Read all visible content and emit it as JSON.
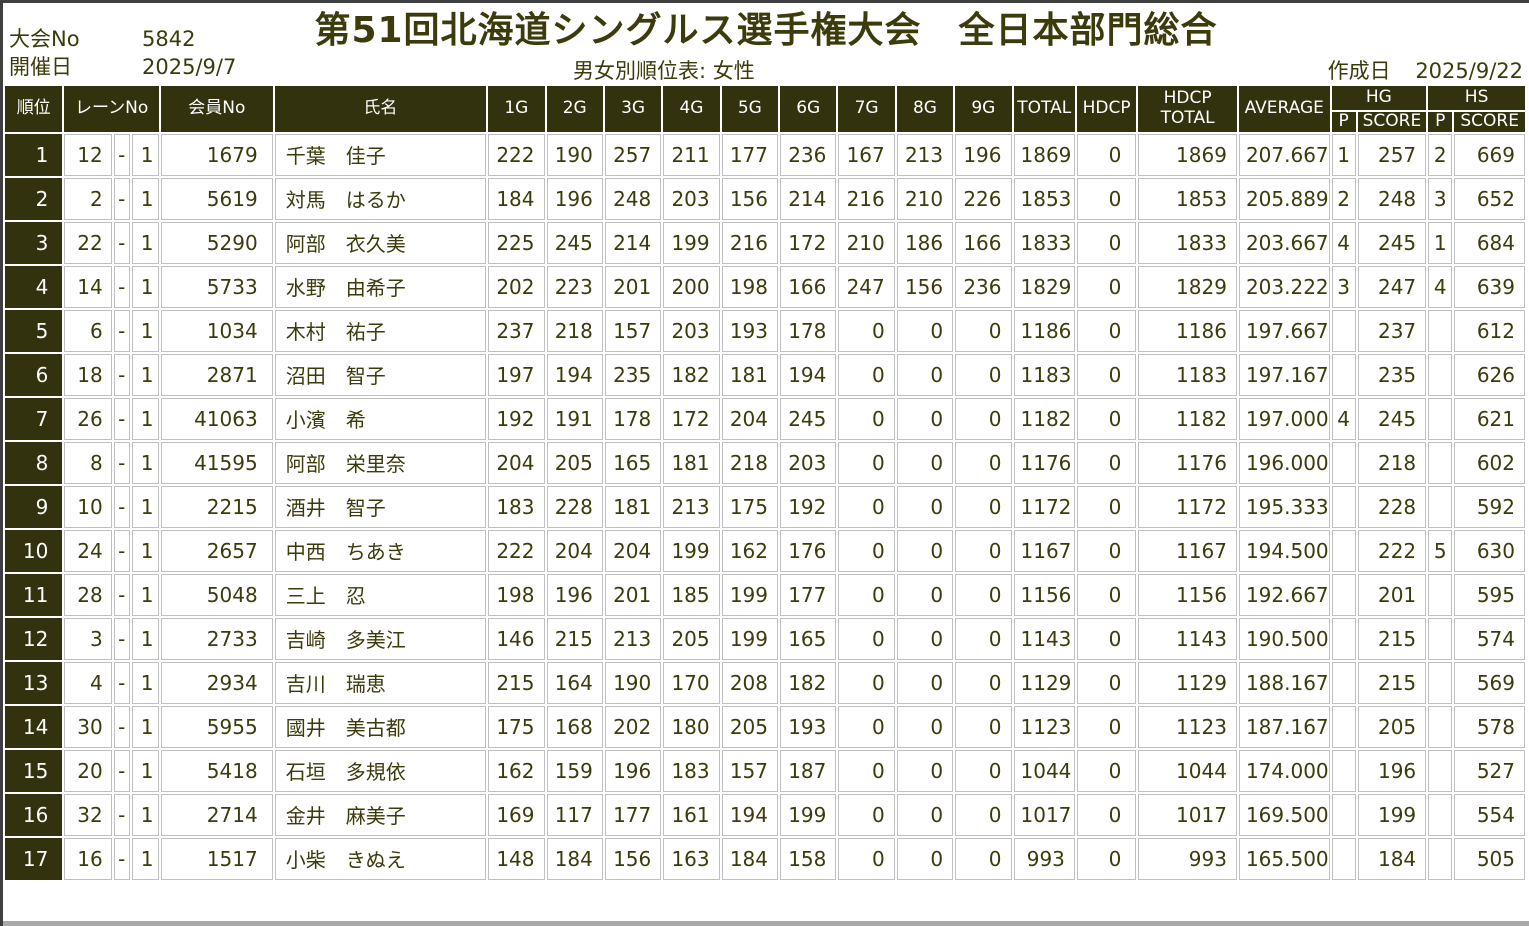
{
  "meta": {
    "tournament_no_label": "大会No",
    "tournament_no": "5842",
    "held_date_label": "開催日",
    "held_date": "2025/9/7",
    "title": "第51回北海道シングルス選手権大会　全日本部門総合",
    "subtitle": "男女別順位表: 女性",
    "created_label": "作成日",
    "created_date": "2025/9/22"
  },
  "colors": {
    "header_bg": "#32320e",
    "body_text": "#3b3b0c",
    "grid_line": "#c0c0c0",
    "frame": "#3f3f3f"
  },
  "table": {
    "lane_separator": "-",
    "headers": {
      "rank": "順位",
      "lane": "レーンNo",
      "member": "会員No",
      "name": "氏名",
      "games": [
        "1G",
        "2G",
        "3G",
        "4G",
        "5G",
        "6G",
        "7G",
        "8G",
        "9G"
      ],
      "total": "TOTAL",
      "hdcp": "HDCP",
      "hdcp_total_line1": "HDCP",
      "hdcp_total_line2": "TOTAL",
      "average": "AVERAGE",
      "hg": "HG",
      "hs": "HS",
      "p": "P",
      "score": "SCORE"
    },
    "rows": [
      {
        "rank": 1,
        "lane": 12,
        "lane2": 1,
        "member": 1679,
        "name": "千葉　佳子",
        "games": [
          222,
          190,
          257,
          211,
          177,
          236,
          167,
          213,
          196
        ],
        "total": 1869,
        "hdcp": 0,
        "hdcp_total": 1869,
        "average": "207.667",
        "hg_p": "1",
        "hg_score": 257,
        "hs_p": "2",
        "hs_score": 669
      },
      {
        "rank": 2,
        "lane": 2,
        "lane2": 1,
        "member": 5619,
        "name": "対馬　はるか",
        "games": [
          184,
          196,
          248,
          203,
          156,
          214,
          216,
          210,
          226
        ],
        "total": 1853,
        "hdcp": 0,
        "hdcp_total": 1853,
        "average": "205.889",
        "hg_p": "2",
        "hg_score": 248,
        "hs_p": "3",
        "hs_score": 652
      },
      {
        "rank": 3,
        "lane": 22,
        "lane2": 1,
        "member": 5290,
        "name": "阿部　衣久美",
        "games": [
          225,
          245,
          214,
          199,
          216,
          172,
          210,
          186,
          166
        ],
        "total": 1833,
        "hdcp": 0,
        "hdcp_total": 1833,
        "average": "203.667",
        "hg_p": "4",
        "hg_score": 245,
        "hs_p": "1",
        "hs_score": 684
      },
      {
        "rank": 4,
        "lane": 14,
        "lane2": 1,
        "member": 5733,
        "name": "水野　由希子",
        "games": [
          202,
          223,
          201,
          200,
          198,
          166,
          247,
          156,
          236
        ],
        "total": 1829,
        "hdcp": 0,
        "hdcp_total": 1829,
        "average": "203.222",
        "hg_p": "3",
        "hg_score": 247,
        "hs_p": "4",
        "hs_score": 639
      },
      {
        "rank": 5,
        "lane": 6,
        "lane2": 1,
        "member": 1034,
        "name": "木村　祐子",
        "games": [
          237,
          218,
          157,
          203,
          193,
          178,
          0,
          0,
          0
        ],
        "total": 1186,
        "hdcp": 0,
        "hdcp_total": 1186,
        "average": "197.667",
        "hg_p": "",
        "hg_score": 237,
        "hs_p": "",
        "hs_score": 612
      },
      {
        "rank": 6,
        "lane": 18,
        "lane2": 1,
        "member": 2871,
        "name": "沼田　智子",
        "games": [
          197,
          194,
          235,
          182,
          181,
          194,
          0,
          0,
          0
        ],
        "total": 1183,
        "hdcp": 0,
        "hdcp_total": 1183,
        "average": "197.167",
        "hg_p": "",
        "hg_score": 235,
        "hs_p": "",
        "hs_score": 626
      },
      {
        "rank": 7,
        "lane": 26,
        "lane2": 1,
        "member": 41063,
        "name": "小濱　希",
        "games": [
          192,
          191,
          178,
          172,
          204,
          245,
          0,
          0,
          0
        ],
        "total": 1182,
        "hdcp": 0,
        "hdcp_total": 1182,
        "average": "197.000",
        "hg_p": "4",
        "hg_score": 245,
        "hs_p": "",
        "hs_score": 621
      },
      {
        "rank": 8,
        "lane": 8,
        "lane2": 1,
        "member": 41595,
        "name": "阿部　栄里奈",
        "games": [
          204,
          205,
          165,
          181,
          218,
          203,
          0,
          0,
          0
        ],
        "total": 1176,
        "hdcp": 0,
        "hdcp_total": 1176,
        "average": "196.000",
        "hg_p": "",
        "hg_score": 218,
        "hs_p": "",
        "hs_score": 602
      },
      {
        "rank": 9,
        "lane": 10,
        "lane2": 1,
        "member": 2215,
        "name": "酒井　智子",
        "games": [
          183,
          228,
          181,
          213,
          175,
          192,
          0,
          0,
          0
        ],
        "total": 1172,
        "hdcp": 0,
        "hdcp_total": 1172,
        "average": "195.333",
        "hg_p": "",
        "hg_score": 228,
        "hs_p": "",
        "hs_score": 592
      },
      {
        "rank": 10,
        "lane": 24,
        "lane2": 1,
        "member": 2657,
        "name": "中西　ちあき",
        "games": [
          222,
          204,
          204,
          199,
          162,
          176,
          0,
          0,
          0
        ],
        "total": 1167,
        "hdcp": 0,
        "hdcp_total": 1167,
        "average": "194.500",
        "hg_p": "",
        "hg_score": 222,
        "hs_p": "5",
        "hs_score": 630
      },
      {
        "rank": 11,
        "lane": 28,
        "lane2": 1,
        "member": 5048,
        "name": "三上　忍",
        "games": [
          198,
          196,
          201,
          185,
          199,
          177,
          0,
          0,
          0
        ],
        "total": 1156,
        "hdcp": 0,
        "hdcp_total": 1156,
        "average": "192.667",
        "hg_p": "",
        "hg_score": 201,
        "hs_p": "",
        "hs_score": 595
      },
      {
        "rank": 12,
        "lane": 3,
        "lane2": 1,
        "member": 2733,
        "name": "吉崎　多美江",
        "games": [
          146,
          215,
          213,
          205,
          199,
          165,
          0,
          0,
          0
        ],
        "total": 1143,
        "hdcp": 0,
        "hdcp_total": 1143,
        "average": "190.500",
        "hg_p": "",
        "hg_score": 215,
        "hs_p": "",
        "hs_score": 574
      },
      {
        "rank": 13,
        "lane": 4,
        "lane2": 1,
        "member": 2934,
        "name": "吉川　瑞恵",
        "games": [
          215,
          164,
          190,
          170,
          208,
          182,
          0,
          0,
          0
        ],
        "total": 1129,
        "hdcp": 0,
        "hdcp_total": 1129,
        "average": "188.167",
        "hg_p": "",
        "hg_score": 215,
        "hs_p": "",
        "hs_score": 569
      },
      {
        "rank": 14,
        "lane": 30,
        "lane2": 1,
        "member": 5955,
        "name": "國井　美古都",
        "games": [
          175,
          168,
          202,
          180,
          205,
          193,
          0,
          0,
          0
        ],
        "total": 1123,
        "hdcp": 0,
        "hdcp_total": 1123,
        "average": "187.167",
        "hg_p": "",
        "hg_score": 205,
        "hs_p": "",
        "hs_score": 578
      },
      {
        "rank": 15,
        "lane": 20,
        "lane2": 1,
        "member": 5418,
        "name": "石垣　多規依",
        "games": [
          162,
          159,
          196,
          183,
          157,
          187,
          0,
          0,
          0
        ],
        "total": 1044,
        "hdcp": 0,
        "hdcp_total": 1044,
        "average": "174.000",
        "hg_p": "",
        "hg_score": 196,
        "hs_p": "",
        "hs_score": 527
      },
      {
        "rank": 16,
        "lane": 32,
        "lane2": 1,
        "member": 2714,
        "name": "金井　麻美子",
        "games": [
          169,
          117,
          177,
          161,
          194,
          199,
          0,
          0,
          0
        ],
        "total": 1017,
        "hdcp": 0,
        "hdcp_total": 1017,
        "average": "169.500",
        "hg_p": "",
        "hg_score": 199,
        "hs_p": "",
        "hs_score": 554
      },
      {
        "rank": 17,
        "lane": 16,
        "lane2": 1,
        "member": 1517,
        "name": "小柴　きぬえ",
        "games": [
          148,
          184,
          156,
          163,
          184,
          158,
          0,
          0,
          0
        ],
        "total": 993,
        "hdcp": 0,
        "hdcp_total": 993,
        "average": "165.500",
        "hg_p": "",
        "hg_score": 184,
        "hs_p": "",
        "hs_score": 505
      }
    ]
  }
}
